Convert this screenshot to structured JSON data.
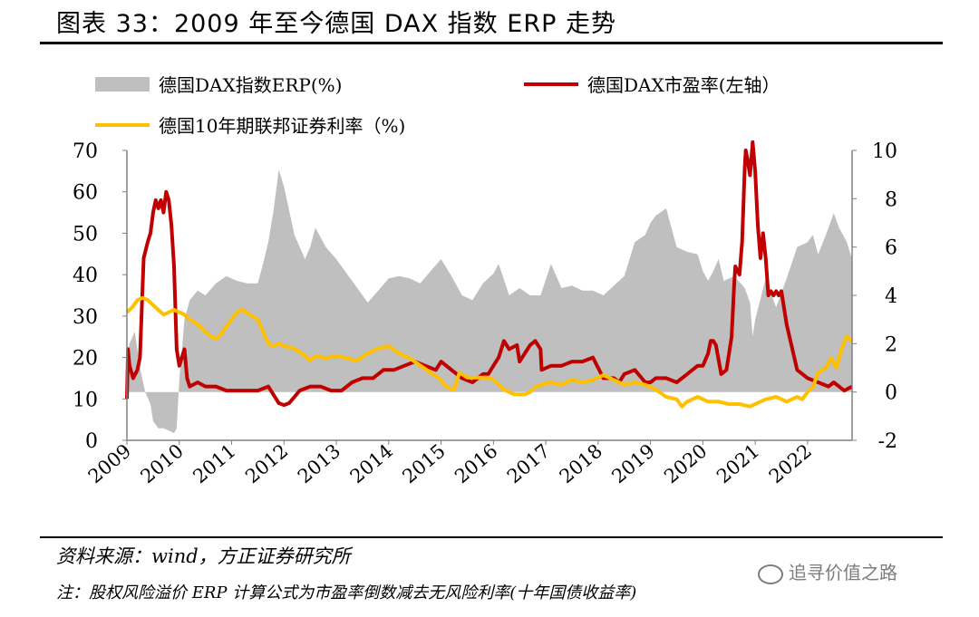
{
  "header": {
    "title": "图表 33：2009 年至今德国 DAX 指数 ERP 走势"
  },
  "footer": {
    "source": "资料来源：wind，方正证券研究所",
    "note": "注：股权风险溢价 ERP 计算公式为市盈率倒数减去无风险利率(十年国债收益率)",
    "watermark": "追寻价值之路"
  },
  "colors": {
    "erp": "#bfbfbf",
    "pe": "#c00000",
    "bund": "#ffc000"
  },
  "chart_data": {
    "type": "line",
    "legend": {
      "erp": "德国DAX指数ERP(%)",
      "pe": "德国DAX市盈率(左轴）",
      "bund": "德国10年期联邦证券利率（%)"
    },
    "left_axis": {
      "ylim": [
        0,
        70
      ],
      "ticks": [
        "0",
        "10",
        "20",
        "30",
        "40",
        "50",
        "60",
        "70"
      ]
    },
    "right_axis": {
      "ylim": [
        -2,
        10
      ],
      "ticks": [
        "-2",
        "0",
        "2",
        "4",
        "6",
        "8",
        "10"
      ]
    },
    "x_ticks": [
      "2009",
      "2010",
      "2011",
      "2012",
      "2013",
      "2014",
      "2015",
      "2016",
      "2017",
      "2018",
      "2019",
      "2020",
      "2021",
      "2022"
    ],
    "x_range": [
      2009.0,
      2022.85
    ],
    "series": [
      {
        "name": "德国DAX指数ERP(%)",
        "type": "area",
        "axis": "right",
        "x": [
          2009.0,
          2009.05,
          2009.15,
          2009.25,
          2009.35,
          2009.45,
          2009.5,
          2009.6,
          2009.7,
          2009.8,
          2009.9,
          2009.95,
          2010.0,
          2010.1,
          2010.2,
          2010.35,
          2010.5,
          2010.7,
          2010.9,
          2011.1,
          2011.3,
          2011.5,
          2011.6,
          2011.7,
          2011.8,
          2011.9,
          2012.0,
          2012.2,
          2012.4,
          2012.5,
          2012.6,
          2012.8,
          2013.0,
          2013.2,
          2013.4,
          2013.6,
          2013.8,
          2014.0,
          2014.2,
          2014.4,
          2014.6,
          2014.8,
          2015.0,
          2015.2,
          2015.4,
          2015.6,
          2015.8,
          2016.0,
          2016.1,
          2016.3,
          2016.5,
          2016.7,
          2016.9,
          2017.1,
          2017.3,
          2017.5,
          2017.7,
          2017.9,
          2018.1,
          2018.3,
          2018.5,
          2018.7,
          2018.9,
          2019.0,
          2019.1,
          2019.3,
          2019.5,
          2019.7,
          2019.9,
          2020.0,
          2020.1,
          2020.2,
          2020.3,
          2020.4,
          2020.6,
          2020.8,
          2020.9,
          2020.95,
          2021.0,
          2021.2,
          2021.4,
          2021.6,
          2021.8,
          2022.0,
          2022.1,
          2022.2,
          2022.35,
          2022.5,
          2022.6,
          2022.75,
          2022.85
        ],
        "y": [
          1.5,
          2.0,
          2.5,
          1.0,
          0.0,
          -0.5,
          -1.2,
          -1.5,
          -1.5,
          -1.6,
          -1.7,
          -1.5,
          0.5,
          3.0,
          3.8,
          4.2,
          4.0,
          4.5,
          4.8,
          4.6,
          4.5,
          4.5,
          5.3,
          6.2,
          7.5,
          9.2,
          8.5,
          6.5,
          5.5,
          6.0,
          6.8,
          6.0,
          5.5,
          4.9,
          4.3,
          3.7,
          4.2,
          4.7,
          4.8,
          4.7,
          4.5,
          5.0,
          5.5,
          4.8,
          4.0,
          3.8,
          4.5,
          4.9,
          5.3,
          4.0,
          4.3,
          4.0,
          4.0,
          5.3,
          4.3,
          4.4,
          4.2,
          4.2,
          4.0,
          4.4,
          4.8,
          6.2,
          6.5,
          7.0,
          7.3,
          7.6,
          6.0,
          5.8,
          5.7,
          5.0,
          4.6,
          5.0,
          5.5,
          4.6,
          4.8,
          4.3,
          3.7,
          2.3,
          3.0,
          4.7,
          3.5,
          4.7,
          6.0,
          6.2,
          6.5,
          5.7,
          6.5,
          7.4,
          6.8,
          6.2,
          5.5
        ]
      },
      {
        "name": "德国DAX市盈率(左轴）",
        "type": "line",
        "axis": "left",
        "x": [
          2009.0,
          2009.02,
          2009.05,
          2009.12,
          2009.2,
          2009.25,
          2009.32,
          2009.4,
          2009.45,
          2009.5,
          2009.55,
          2009.6,
          2009.65,
          2009.7,
          2009.75,
          2009.8,
          2009.85,
          2009.9,
          2009.95,
          2010.0,
          2010.05,
          2010.1,
          2010.15,
          2010.2,
          2010.35,
          2010.5,
          2010.7,
          2010.9,
          2011.1,
          2011.3,
          2011.5,
          2011.7,
          2011.8,
          2011.9,
          2012.0,
          2012.1,
          2012.3,
          2012.5,
          2012.7,
          2012.9,
          2013.1,
          2013.3,
          2013.5,
          2013.7,
          2013.9,
          2014.1,
          2014.3,
          2014.5,
          2014.7,
          2014.9,
          2015.0,
          2015.2,
          2015.4,
          2015.6,
          2015.8,
          2015.9,
          2016.0,
          2016.1,
          2016.2,
          2016.3,
          2016.45,
          2016.5,
          2016.7,
          2016.8,
          2016.9,
          2016.92,
          2017.1,
          2017.3,
          2017.5,
          2017.7,
          2017.9,
          2018.1,
          2018.3,
          2018.4,
          2018.5,
          2018.7,
          2018.9,
          2019.0,
          2019.1,
          2019.3,
          2019.5,
          2019.7,
          2019.9,
          2020.0,
          2020.1,
          2020.15,
          2020.2,
          2020.25,
          2020.35,
          2020.45,
          2020.55,
          2020.6,
          2020.62,
          2020.7,
          2020.75,
          2020.8,
          2020.82,
          2020.85,
          2020.9,
          2020.95,
          2021.0,
          2021.05,
          2021.1,
          2021.15,
          2021.2,
          2021.25,
          2021.3,
          2021.35,
          2021.4,
          2021.45,
          2021.5,
          2021.6,
          2021.8,
          2022.0,
          2022.2,
          2022.4,
          2022.5,
          2022.6,
          2022.7,
          2022.85
        ],
        "y": [
          10,
          22,
          18,
          15,
          17,
          20,
          44,
          48,
          50,
          55,
          58,
          56,
          58,
          55,
          60,
          58,
          52,
          42,
          22,
          18,
          20,
          22,
          15,
          13,
          14,
          13,
          13,
          12,
          12,
          12,
          12,
          13,
          11,
          9,
          8.5,
          9,
          12,
          13,
          13,
          12,
          12,
          14,
          15,
          15,
          17,
          17,
          18,
          19,
          18,
          17,
          19,
          17,
          15,
          14,
          16,
          16,
          18,
          20,
          24,
          22,
          23,
          19,
          23,
          24,
          22,
          17,
          18,
          18,
          19,
          19,
          20,
          15,
          15,
          14,
          16,
          17,
          14,
          14,
          15,
          15,
          14,
          16,
          18,
          18,
          21,
          24,
          24,
          23,
          16,
          17,
          25,
          38,
          42,
          40,
          48,
          66,
          70,
          68,
          64,
          72,
          65,
          52,
          44,
          50,
          44,
          35,
          36,
          35,
          36,
          35,
          36,
          28,
          17,
          15,
          14,
          13,
          14,
          13,
          12,
          13
        ]
      },
      {
        "name": "德国10年期联邦证券利率（%)",
        "type": "line",
        "axis": "right",
        "x": [
          2009.0,
          2009.1,
          2009.2,
          2009.3,
          2009.4,
          2009.5,
          2009.6,
          2009.7,
          2009.8,
          2009.9,
          2010.0,
          2010.1,
          2010.2,
          2010.35,
          2010.5,
          2010.6,
          2010.7,
          2010.8,
          2010.9,
          2011.0,
          2011.1,
          2011.2,
          2011.35,
          2011.5,
          2011.6,
          2011.7,
          2011.8,
          2011.9,
          2012.0,
          2012.2,
          2012.4,
          2012.5,
          2012.6,
          2012.8,
          2013.0,
          2013.2,
          2013.4,
          2013.6,
          2013.8,
          2014.0,
          2014.2,
          2014.4,
          2014.6,
          2014.8,
          2015.0,
          2015.1,
          2015.25,
          2015.35,
          2015.5,
          2015.7,
          2015.9,
          2016.0,
          2016.2,
          2016.4,
          2016.5,
          2016.6,
          2016.7,
          2016.8,
          2016.9,
          2017.1,
          2017.3,
          2017.5,
          2017.7,
          2017.9,
          2018.1,
          2018.3,
          2018.5,
          2018.7,
          2018.9,
          2019.1,
          2019.3,
          2019.5,
          2019.6,
          2019.7,
          2019.9,
          2020.1,
          2020.2,
          2020.3,
          2020.5,
          2020.7,
          2020.9,
          2021.0,
          2021.2,
          2021.4,
          2021.6,
          2021.8,
          2021.9,
          2022.0,
          2022.1,
          2022.2,
          2022.35,
          2022.45,
          2022.55,
          2022.65,
          2022.75,
          2022.85
        ],
        "y": [
          3.3,
          3.5,
          3.8,
          3.9,
          3.8,
          3.6,
          3.4,
          3.2,
          3.3,
          3.4,
          3.3,
          3.2,
          3.0,
          2.8,
          2.5,
          2.3,
          2.2,
          2.4,
          2.7,
          3.0,
          3.3,
          3.4,
          3.2,
          3.0,
          2.5,
          2.0,
          1.9,
          2.0,
          1.9,
          1.8,
          1.5,
          1.3,
          1.5,
          1.4,
          1.5,
          1.4,
          1.3,
          1.6,
          1.8,
          1.9,
          1.6,
          1.4,
          1.1,
          0.8,
          0.5,
          0.2,
          0.1,
          0.8,
          0.6,
          0.6,
          0.6,
          0.5,
          0.1,
          -0.1,
          -0.1,
          -0.1,
          0.0,
          0.2,
          0.3,
          0.4,
          0.3,
          0.5,
          0.4,
          0.5,
          0.7,
          0.5,
          0.3,
          0.4,
          0.3,
          0.1,
          -0.2,
          -0.3,
          -0.6,
          -0.4,
          -0.2,
          -0.4,
          -0.4,
          -0.4,
          -0.5,
          -0.5,
          -0.6,
          -0.5,
          -0.3,
          -0.2,
          -0.4,
          -0.2,
          -0.3,
          0.0,
          0.2,
          0.8,
          1.0,
          1.4,
          1.0,
          1.8,
          2.3,
          2.1
        ]
      }
    ]
  }
}
